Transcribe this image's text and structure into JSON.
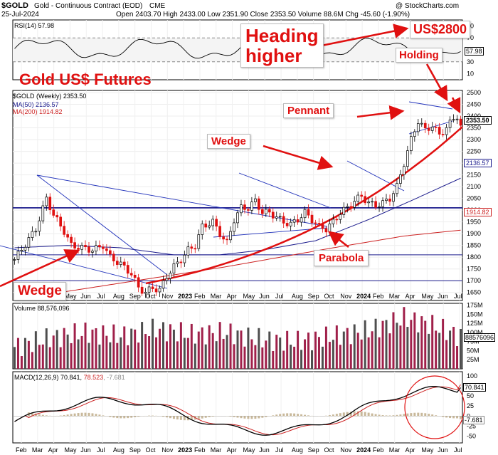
{
  "header": {
    "symbol": "$GOLD",
    "title": "Gold - Continuous Contract (EOD)",
    "exchange": "CME",
    "date": "25-Jul-2024",
    "ohlc": "Open 2403.70  High 2433.00  Low 2351.90  Close 2353.50  Volume 88.6M  Chg -45.60 (-1.90%)",
    "copyright": "@ StockCharts.com"
  },
  "rsi": {
    "label": "RSI(14) 57.98",
    "value_label": "57.98",
    "levels": [
      70,
      30
    ],
    "ticks": [
      90,
      70,
      50,
      30,
      10
    ]
  },
  "price_panel": {
    "title": "Gold US$ Futures",
    "legend_main": "$GOLD (Weekly) 2353.50",
    "legend_ma50": "MA(50) 2136.57",
    "legend_ma200": "MA(200) 1914.82",
    "last_price_label": "2353.50",
    "ma50_label": "2136.57",
    "ma200_label": "1914.82"
  },
  "volume": {
    "label": "Volume 88,576,096",
    "ticks": [
      "175M",
      "150M",
      "125M",
      "100M",
      "75M",
      "50M",
      "25M"
    ],
    "last_label": "88576096"
  },
  "macd": {
    "label_main": "MACD(12,26,9) 70.841, ",
    "label_signal": "78.523",
    "label_hist": ", -7.681",
    "ticks": [
      "100",
      "75",
      "50",
      "25",
      "0",
      "-25",
      "-50"
    ],
    "macd_label": "70.841",
    "signal_label": "78.523",
    "hist_label": "-7.681"
  },
  "annotations": {
    "heading": "Heading\nhigher",
    "target": "US$2800",
    "holding": "Holding",
    "pennant": "Pennant",
    "wedge_mid": "Wedge",
    "wedge_left": "Wedge",
    "parabola": "Parabola"
  },
  "colors": {
    "up": "#22aa22",
    "down": "#e01010",
    "ma50": "#1a1a8c",
    "ma200": "#cc2222",
    "annotation": "#e01010",
    "vol_up": "#4d4d4d",
    "vol_down": "#a0204a"
  },
  "chart_data": {
    "type": "candlestick",
    "timeframe": "weekly",
    "y_axis_ticks": [
      2500,
      2450,
      2400,
      2350,
      2300,
      2250,
      2200,
      2150,
      2100,
      2050,
      2000,
      1950,
      1900,
      1850,
      1800,
      1750,
      1700,
      1650
    ],
    "x_axis_labels": [
      "Feb",
      "Mar",
      "Apr",
      "May",
      "Jun",
      "Jul",
      "Aug",
      "Sep",
      "Oct",
      "Nov",
      "2023",
      "Feb",
      "Mar",
      "Apr",
      "May",
      "Jun",
      "Jul",
      "Aug",
      "Sep",
      "Oct",
      "Nov",
      "2024",
      "Feb",
      "Mar",
      "Apr",
      "May",
      "Jun",
      "Jul"
    ],
    "horizontal_levels": [
      2010,
      1810,
      1700
    ],
    "price_waypoints": [
      [
        0,
        1790
      ],
      [
        6,
        1920
      ],
      [
        9,
        2050
      ],
      [
        11,
        1980
      ],
      [
        14,
        1910
      ],
      [
        16,
        1850
      ],
      [
        19,
        1840
      ],
      [
        22,
        1830
      ],
      [
        25,
        1850
      ],
      [
        27,
        1800
      ],
      [
        30,
        1770
      ],
      [
        33,
        1730
      ],
      [
        35,
        1670
      ],
      [
        37,
        1650
      ],
      [
        39,
        1670
      ],
      [
        41,
        1660
      ],
      [
        43,
        1720
      ],
      [
        45,
        1760
      ],
      [
        47,
        1790
      ],
      [
        49,
        1830
      ],
      [
        51,
        1850
      ],
      [
        53,
        1930
      ],
      [
        56,
        1950
      ],
      [
        58,
        1900
      ],
      [
        60,
        1860
      ],
      [
        62,
        1960
      ],
      [
        64,
        2010
      ],
      [
        66,
        2010
      ],
      [
        68,
        2040
      ],
      [
        70,
        1990
      ],
      [
        72,
        1990
      ],
      [
        74,
        1970
      ],
      [
        76,
        1950
      ],
      [
        78,
        1940
      ],
      [
        80,
        1960
      ],
      [
        82,
        1990
      ],
      [
        84,
        1960
      ],
      [
        86,
        1930
      ],
      [
        88,
        1920
      ],
      [
        90,
        1950
      ],
      [
        92,
        1990
      ],
      [
        94,
        2010
      ],
      [
        96,
        2040
      ],
      [
        98,
        2060
      ],
      [
        100,
        2030
      ],
      [
        102,
        2020
      ],
      [
        104,
        2030
      ],
      [
        106,
        2050
      ],
      [
        108,
        2100
      ],
      [
        110,
        2200
      ],
      [
        112,
        2300
      ],
      [
        114,
        2380
      ],
      [
        116,
        2340
      ],
      [
        118,
        2360
      ],
      [
        120,
        2320
      ],
      [
        122,
        2350
      ],
      [
        124,
        2390
      ],
      [
        125,
        2400
      ],
      [
        126,
        2353
      ]
    ],
    "ma50_waypoints": [
      [
        0,
        1840
      ],
      [
        15,
        1850
      ],
      [
        30,
        1840
      ],
      [
        45,
        1810
      ],
      [
        58,
        1810
      ],
      [
        70,
        1830
      ],
      [
        85,
        1870
      ],
      [
        100,
        1960
      ],
      [
        112,
        2040
      ],
      [
        126,
        2136
      ]
    ],
    "ma200_waypoints": [
      [
        0,
        1620
      ],
      [
        30,
        1690
      ],
      [
        60,
        1760
      ],
      [
        90,
        1840
      ],
      [
        110,
        1890
      ],
      [
        126,
        1915
      ]
    ],
    "volume_M_waypoints": [
      [
        0,
        60
      ],
      [
        10,
        85
      ],
      [
        20,
        100
      ],
      [
        30,
        90
      ],
      [
        40,
        110
      ],
      [
        50,
        95
      ],
      [
        60,
        100
      ],
      [
        70,
        80
      ],
      [
        80,
        75
      ],
      [
        90,
        90
      ],
      [
        100,
        105
      ],
      [
        110,
        140
      ],
      [
        118,
        120
      ],
      [
        126,
        88.6
      ]
    ],
    "macd_last": 70.841,
    "signal_last": 78.523,
    "hist_last": -7.681,
    "rsi_last": 57.98
  }
}
